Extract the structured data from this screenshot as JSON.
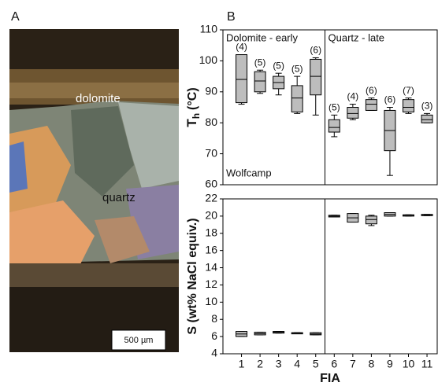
{
  "photo": {
    "panel_label": "A",
    "labels": [
      "dolomite",
      "quartz"
    ],
    "scale_bar": "500 µm"
  },
  "chart_data": [
    {
      "type": "box",
      "panel_label": "B",
      "ylabel": "T",
      "ylabel_sub": "h",
      "ylabel_unit": "(°C)",
      "annotations": [
        "Dolomite - early",
        "Quartz - late",
        "Wolfcamp"
      ],
      "x": [
        1,
        2,
        3,
        4,
        5,
        6,
        7,
        8,
        9,
        10,
        11
      ],
      "xlim": [
        0,
        11.55
      ],
      "divider": 5.5,
      "ylim": [
        60,
        110
      ],
      "yticks": [
        60,
        70,
        80,
        90,
        100,
        110
      ],
      "color": "#bdbdbd",
      "min": [
        86,
        89.5,
        89,
        83,
        82.5,
        75.5,
        81,
        84,
        63,
        83,
        80
      ],
      "q1": [
        86.5,
        90,
        91,
        83.5,
        89,
        77,
        81.5,
        84,
        71,
        83.5,
        80
      ],
      "median": [
        94,
        93.5,
        93,
        88,
        95,
        78.5,
        83,
        86,
        77.5,
        85,
        81
      ],
      "q3": [
        102,
        96.5,
        95,
        92,
        100.5,
        81,
        85,
        87.5,
        84,
        87.5,
        82.5
      ],
      "max": [
        102,
        97,
        96,
        95,
        101,
        82.5,
        86,
        88,
        85,
        88,
        83
      ],
      "n": [
        4,
        5,
        5,
        5,
        6,
        5,
        4,
        6,
        6,
        7,
        3
      ],
      "n_labels": [
        "(4)",
        "(5)",
        "(5)",
        "(5)",
        "(6)",
        "(5)",
        "(4)",
        "(6)",
        "(6)",
        "(7)",
        "(3)"
      ]
    },
    {
      "type": "box",
      "ylabel": "S (wt% NaCl equiv.)",
      "xlabel": "FIA",
      "x": [
        1,
        2,
        3,
        4,
        5,
        6,
        7,
        8,
        9,
        10,
        11
      ],
      "xlim": [
        0,
        11.55
      ],
      "divider": 5.5,
      "xticks": [
        1,
        2,
        3,
        4,
        5,
        6,
        7,
        8,
        9,
        10,
        11
      ],
      "ylim": [
        4,
        22
      ],
      "yticks": [
        4,
        6,
        8,
        10,
        12,
        14,
        16,
        18,
        20,
        22
      ],
      "color": "#bdbdbd",
      "min": [
        6,
        6.2,
        6.4,
        6.35,
        6.2,
        19.9,
        19.3,
        18.9,
        20,
        20,
        20.05
      ],
      "q1": [
        6,
        6.2,
        6.4,
        6.35,
        6.2,
        19.9,
        19.3,
        19.1,
        20,
        20,
        20.05
      ],
      "median": [
        6.3,
        6.35,
        6.5,
        6.4,
        6.3,
        20,
        19.8,
        19.6,
        20.2,
        20.1,
        20.1
      ],
      "q3": [
        6.6,
        6.5,
        6.6,
        6.45,
        6.45,
        20.1,
        20.3,
        20,
        20.4,
        20.15,
        20.2
      ],
      "max": [
        6.6,
        6.5,
        6.6,
        6.45,
        6.45,
        20.1,
        20.3,
        20.1,
        20.4,
        20.15,
        20.2
      ]
    }
  ]
}
